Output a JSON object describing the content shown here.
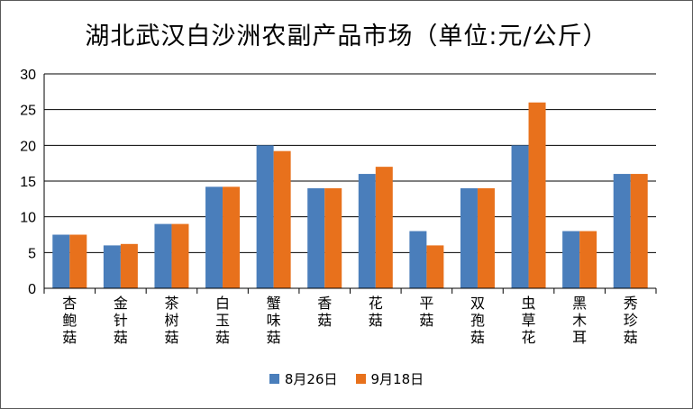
{
  "chart_data": {
    "type": "bar",
    "title": "湖北武汉白沙洲农副产品市场（单位:元/公斤）",
    "categories": [
      "杏鲍菇",
      "金针菇",
      "茶树菇",
      "白玉菇",
      "蟹味菇",
      "香菇",
      "花菇",
      "平菇",
      "双孢菇",
      "虫草花",
      "黑木耳",
      "秀珍菇"
    ],
    "series": [
      {
        "name": "8月26日",
        "color": "#4a7ebb",
        "values": [
          7.5,
          6,
          9,
          14.2,
          20,
          14,
          16,
          8,
          14,
          20,
          8,
          16
        ]
      },
      {
        "name": "9月18日",
        "color": "#e8711c",
        "values": [
          7.5,
          6.2,
          9,
          14.2,
          19.2,
          14,
          17,
          6,
          14,
          26,
          8,
          16
        ]
      }
    ],
    "ylim": [
      0,
      30
    ],
    "yticks": [
      0,
      5,
      10,
      15,
      20,
      25,
      30
    ],
    "grid": true,
    "legend_position": "bottom"
  }
}
